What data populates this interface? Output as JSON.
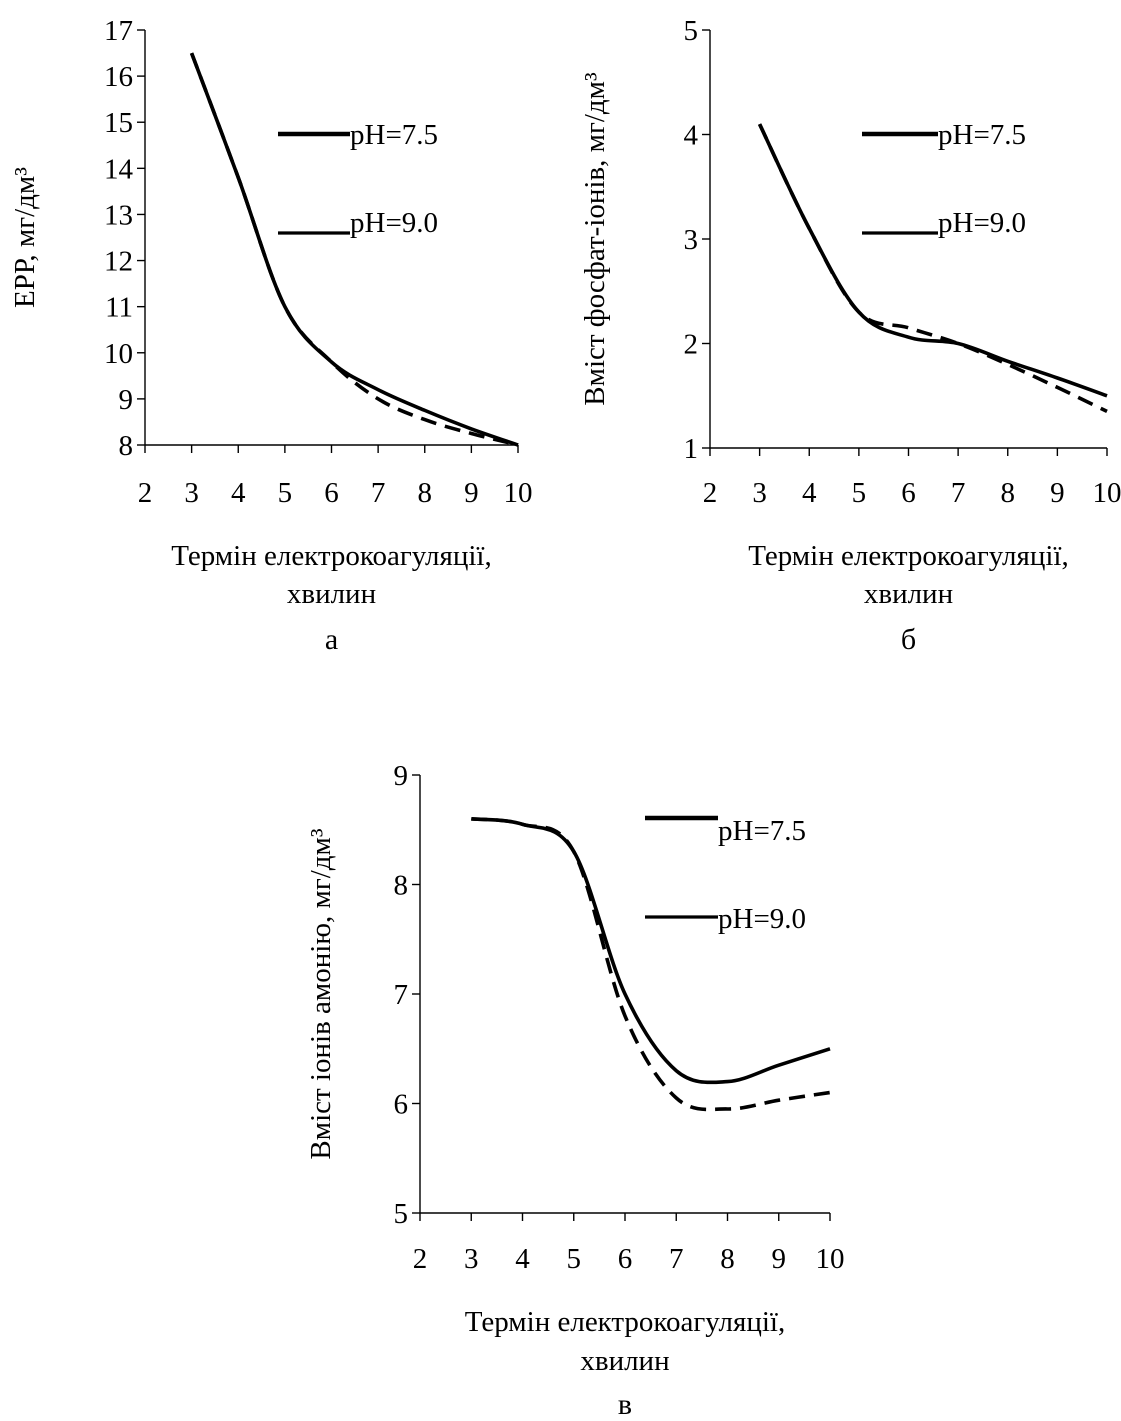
{
  "chart_data": [
    {
      "type": "line",
      "panel_label": "а",
      "xlabel_line1": "Термін електрокоагуляції,",
      "xlabel_line2": "хвилин",
      "ylabel": "ЕРР, мг/дм³",
      "xlim": [
        2,
        10
      ],
      "ylim": [
        8,
        17
      ],
      "x_ticks": [
        2,
        3,
        4,
        5,
        6,
        7,
        8,
        9,
        10
      ],
      "y_ticks": [
        8,
        9,
        10,
        11,
        12,
        13,
        14,
        15,
        16,
        17
      ],
      "legend": "right",
      "grid": false,
      "series": [
        {
          "name": "pH=7.5",
          "style": "solid",
          "x": [
            3,
            4,
            5,
            6,
            7,
            8,
            9,
            10
          ],
          "values": [
            16.5,
            13.8,
            11.0,
            9.8,
            9.2,
            8.75,
            8.35,
            8.0
          ]
        },
        {
          "name": "pH=9.0",
          "style": "dashed",
          "x": [
            3,
            4,
            5,
            6,
            7,
            8,
            9,
            10
          ],
          "values": [
            16.5,
            13.8,
            11.0,
            9.8,
            9.0,
            8.55,
            8.25,
            8.0
          ]
        }
      ]
    },
    {
      "type": "line",
      "panel_label": "б",
      "xlabel_line1": "Термін електрокоагуляції,",
      "xlabel_line2": "хвилин",
      "ylabel": "Вміст фосфат-іонів, мг/дм³",
      "xlim": [
        2,
        10
      ],
      "ylim": [
        1,
        5
      ],
      "x_ticks": [
        2,
        3,
        4,
        5,
        6,
        7,
        8,
        9,
        10
      ],
      "y_ticks": [
        1,
        2,
        3,
        4,
        5
      ],
      "legend": "right",
      "grid": false,
      "series": [
        {
          "name": "pH=7.5",
          "style": "solid",
          "x": [
            3,
            4,
            5,
            6,
            7,
            8,
            9,
            10
          ],
          "values": [
            4.1,
            3.1,
            2.3,
            2.06,
            2.0,
            1.83,
            1.67,
            1.5
          ]
        },
        {
          "name": "pH=9.0",
          "style": "dashed",
          "x": [
            3,
            4,
            5,
            6,
            7,
            8,
            9,
            10
          ],
          "values": [
            4.1,
            3.1,
            2.3,
            2.15,
            2.0,
            1.8,
            1.58,
            1.35
          ]
        }
      ]
    },
    {
      "type": "line",
      "panel_label": "в",
      "xlabel_line1": "Термін електрокоагуляції,",
      "xlabel_line2": "хвилин",
      "ylabel": "Вміст іонів амонію, мг/дм³",
      "xlim": [
        2,
        10
      ],
      "ylim": [
        5,
        9
      ],
      "x_ticks": [
        2,
        3,
        4,
        5,
        6,
        7,
        8,
        9,
        10
      ],
      "y_ticks": [
        5,
        6,
        7,
        8,
        9
      ],
      "legend": "right",
      "grid": false,
      "series": [
        {
          "name": "pH=7.5",
          "style": "solid",
          "x": [
            3,
            4,
            5,
            6,
            7,
            8,
            9,
            10
          ],
          "values": [
            8.6,
            8.55,
            8.3,
            7.0,
            6.3,
            6.2,
            6.35,
            6.5
          ]
        },
        {
          "name": "pH=9.0",
          "style": "dashed",
          "x": [
            3,
            4,
            5,
            6,
            7,
            8,
            9,
            10
          ],
          "values": [
            8.6,
            8.55,
            8.3,
            6.8,
            6.05,
            5.95,
            6.03,
            6.1
          ]
        }
      ]
    }
  ]
}
